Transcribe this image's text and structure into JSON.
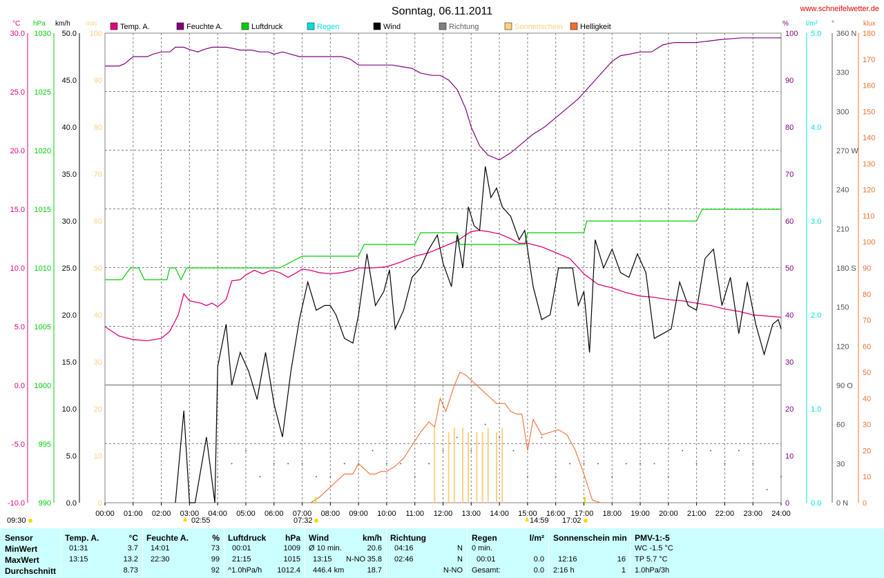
{
  "title": "Sonntag, 06.11.2011",
  "website": "www.schneifelwetter.de",
  "colors": {
    "temp": "#e0007a",
    "humidity": "#800080",
    "pressure": "#00d000",
    "rain": "#00e0e0",
    "wind": "#000000",
    "direction": "#606060",
    "sunshine": "#ffd080",
    "brightness": "#f07030",
    "grid": "#808080",
    "panel": "#ccffff"
  },
  "axis_units": {
    "temp": "°C",
    "pressure": "hPa",
    "wind": "km/h",
    "sunshine": "min",
    "humidity": "%",
    "rain": "l/m²",
    "direction": "°",
    "brightness": "klux"
  },
  "legend": [
    {
      "label": "Temp. A.",
      "color": "#e0007a"
    },
    {
      "label": "Feuchte A.",
      "color": "#800080"
    },
    {
      "label": "Luftdruck",
      "color": "#00d000"
    },
    {
      "label": "Regen",
      "color": "#00e0e0"
    },
    {
      "label": "Wind",
      "color": "#000000"
    },
    {
      "label": "Richtung",
      "color": "#808080"
    },
    {
      "label": "Sonnenschein",
      "color": "#ffd080"
    },
    {
      "label": "Helligkeit",
      "color": "#f07030"
    }
  ],
  "ticks": {
    "temp": [
      "30.0",
      "25.0",
      "20.0",
      "15.0",
      "10.0",
      "5.0",
      "0.0",
      "-5.0",
      "-10.0"
    ],
    "pressure": [
      "1030",
      "1025",
      "1020",
      "1015",
      "1010",
      "1005",
      "1000",
      "995",
      "990"
    ],
    "wind": [
      "50.0",
      "45.0",
      "40.0",
      "35.0",
      "30.0",
      "25.0",
      "20.0",
      "15.0",
      "10.0",
      "5.0",
      "0.0"
    ],
    "sunshine": [
      "100",
      "90",
      "80",
      "70",
      "60",
      "50",
      "40",
      "30",
      "20",
      "10",
      "0"
    ],
    "humidity": [
      "100",
      "90",
      "80",
      "70",
      "60",
      "50",
      "40",
      "30",
      "20",
      "10",
      "0"
    ],
    "rain": [
      "5.0",
      "4.0",
      "3.0",
      "2.0",
      "1.0",
      "0.0"
    ],
    "direction": [
      "360 N",
      "330",
      "300",
      "270 W",
      "240",
      "210",
      "180 S",
      "150",
      "120",
      "90 O",
      "60",
      "30",
      "0 N"
    ],
    "brightness": [
      "180",
      "170",
      "160",
      "150",
      "140",
      "130",
      "120",
      "110",
      "100",
      "90",
      "80",
      "70",
      "60",
      "50",
      "40",
      "30",
      "20",
      "10",
      "0"
    ],
    "time": [
      "00:00",
      "01:00",
      "02:00",
      "03:00",
      "04:00",
      "05:00",
      "06:00",
      "07:00",
      "08:00",
      "09:00",
      "10:00",
      "11:00",
      "12:00",
      "13:00",
      "14:00",
      "15:00",
      "16:00",
      "17:00",
      "18:00",
      "19:00",
      "20:00",
      "21:00",
      "22:00",
      "23:00",
      "24:00"
    ]
  },
  "sun_marks": {
    "moonrise": "09:30",
    "moonset": "02:55",
    "sunrise": "07:32",
    "moon2": "14:59",
    "sunset": "17:02"
  },
  "chart_data": {
    "type": "line",
    "title": "Sonntag, 06.11.2011",
    "x_unit": "hours",
    "series": [
      {
        "name": "Temp. A.",
        "unit": "°C",
        "x": [
          0,
          0.5,
          1,
          1.5,
          2,
          2.3,
          2.6,
          2.8,
          3,
          3.4,
          3.6,
          3.8,
          4,
          4.3,
          4.5,
          4.8,
          5,
          5.3,
          5.6,
          5.9,
          6.2,
          6.5,
          6.8,
          7,
          7.3,
          7.6,
          8,
          8.4,
          8.8,
          9,
          9.5,
          10,
          10.5,
          11,
          11.5,
          12,
          12.5,
          12.8,
          13,
          13.3,
          13.6,
          14,
          14.4,
          14.7,
          15,
          15.5,
          16,
          16.5,
          17,
          17.5,
          18,
          18.5,
          19,
          19.5,
          20,
          20.5,
          21,
          21.5,
          22,
          22.5,
          23,
          23.5,
          24
        ],
        "y": [
          5.0,
          4.2,
          3.9,
          3.8,
          4.0,
          4.6,
          6.0,
          7.8,
          7.2,
          7.0,
          6.8,
          7.0,
          6.7,
          7.3,
          8.9,
          9.0,
          9.4,
          9.8,
          9.5,
          9.8,
          9.6,
          9.2,
          9.6,
          9.9,
          9.8,
          9.6,
          9.5,
          9.6,
          9.8,
          10.0,
          10.0,
          10.1,
          10.5,
          11.0,
          11.3,
          11.8,
          12.3,
          12.8,
          13.1,
          13.2,
          13.1,
          12.9,
          12.5,
          12.1,
          12.1,
          11.8,
          11.3,
          10.8,
          9.5,
          8.6,
          8.3,
          7.9,
          7.6,
          7.5,
          7.3,
          7.2,
          7.0,
          6.8,
          6.5,
          6.3,
          6.0,
          5.9,
          5.8
        ]
      },
      {
        "name": "Feuchte A.",
        "unit": "%",
        "x": [
          0,
          0.5,
          0.7,
          1,
          1.5,
          1.7,
          2,
          2.3,
          2.5,
          2.8,
          3,
          3.3,
          3.5,
          3.8,
          4,
          4.3,
          4.5,
          4.8,
          5.2,
          5.5,
          5.8,
          6,
          6.3,
          6.6,
          6.9,
          7.2,
          7.6,
          8,
          8.4,
          8.7,
          9,
          9.4,
          9.8,
          10.2,
          10.6,
          10.9,
          11.2,
          11.6,
          11.9,
          12.2,
          12.5,
          12.8,
          13,
          13.3,
          13.6,
          14,
          14.4,
          14.8,
          15.2,
          15.6,
          16,
          16.4,
          16.8,
          17.1,
          17.4,
          17.7,
          18,
          18.3,
          18.6,
          19,
          19.4,
          19.8,
          20.2,
          20.6,
          21,
          21.4,
          21.8,
          22.2,
          22.6,
          23,
          23.4,
          23.8,
          24
        ],
        "y": [
          93,
          93,
          93.5,
          95,
          95,
          95.5,
          96,
          96,
          97,
          97,
          96.5,
          96,
          96.5,
          97,
          97,
          97,
          96.8,
          96.4,
          96.4,
          96,
          96,
          95.5,
          96,
          95.5,
          95,
          95,
          95,
          95,
          95,
          94.5,
          93.2,
          93.2,
          93.2,
          93.2,
          92.8,
          92.5,
          91.5,
          91,
          91,
          90,
          88,
          84,
          80,
          76,
          74,
          73,
          74.5,
          76.5,
          78.5,
          80,
          82,
          84,
          86,
          88,
          90,
          92,
          94,
          95.2,
          95.5,
          96,
          96,
          97.5,
          98,
          98,
          98,
          98.3,
          98.6,
          98.8,
          99,
          99,
          99,
          99,
          99
        ]
      },
      {
        "name": "Luftdruck",
        "unit": "hPa",
        "x": [
          0,
          0.5,
          0.6,
          0.9,
          1.2,
          1.4,
          1.7,
          2,
          2.2,
          2.3,
          2.5,
          2.7,
          2.9,
          3.2,
          5,
          6,
          6.2,
          7,
          8,
          8.5,
          9,
          9.2,
          10,
          11,
          11.2,
          12,
          12.5,
          12.6,
          14,
          14.9,
          15,
          17,
          17.1,
          18,
          19,
          20,
          21,
          21.2,
          22,
          23,
          24
        ],
        "y": [
          1009,
          1009,
          1009,
          1010,
          1010,
          1009,
          1009,
          1009,
          1009,
          1010,
          1010,
          1009,
          1010,
          1010,
          1010,
          1010,
          1010,
          1011,
          1011,
          1011,
          1011,
          1012,
          1012,
          1012,
          1013,
          1013,
          1013,
          1012,
          1012,
          1012,
          1013,
          1013,
          1014,
          1014,
          1014,
          1014,
          1014,
          1015,
          1015,
          1015,
          1015
        ]
      },
      {
        "name": "Wind",
        "unit": "km/h",
        "x": [
          2.5,
          2.8,
          3.0,
          3.2,
          3.6,
          3.9,
          4.0,
          4.3,
          4.5,
          4.8,
          5.1,
          5.4,
          5.7,
          6.0,
          6.3,
          6.6,
          6.9,
          7.2,
          7.5,
          7.8,
          8.0,
          8.2,
          8.5,
          8.8,
          9.0,
          9.3,
          9.6,
          9.9,
          10.1,
          10.3,
          10.6,
          10.9,
          11.2,
          11.5,
          11.8,
          12.0,
          12.3,
          12.5,
          12.7,
          12.9,
          13.1,
          13.3,
          13.5,
          13.7,
          13.9,
          14.1,
          14.4,
          14.7,
          14.9,
          15.2,
          15.5,
          15.8,
          16.1,
          16.4,
          16.6,
          16.8,
          17.0,
          17.2,
          17.4,
          17.7,
          18.0,
          18.3,
          18.6,
          18.9,
          19.2,
          19.5,
          19.8,
          20.1,
          20.4,
          20.7,
          21.0,
          21.3,
          21.6,
          21.9,
          22.2,
          22.5,
          22.8,
          23.1,
          23.4,
          23.7,
          23.9,
          24.0
        ],
        "y": [
          0.0,
          9.8,
          0.0,
          0.0,
          7.0,
          0.0,
          14.5,
          19.0,
          12.5,
          16.0,
          14.0,
          11.0,
          16.0,
          10.5,
          7.0,
          14.0,
          19.5,
          23.5,
          20.5,
          21.0,
          21.0,
          20.0,
          17.5,
          17.0,
          20.0,
          26.5,
          21.0,
          22.5,
          24.8,
          18.5,
          20.5,
          24.0,
          25.0,
          27.0,
          28.5,
          25.5,
          23.0,
          28.5,
          25.0,
          31.5,
          29.5,
          29.0,
          35.8,
          32.5,
          33.5,
          31.5,
          30.5,
          28.0,
          29.0,
          23.0,
          19.5,
          20.0,
          25.0,
          25.0,
          25.0,
          21.0,
          22.5,
          16.0,
          28.0,
          25.0,
          27.0,
          24.5,
          24.0,
          26.5,
          24.5,
          17.5,
          18.0,
          18.5,
          23.5,
          21.0,
          20.5,
          26.0,
          27.0,
          21.0,
          24.0,
          18.0,
          23.5,
          19.0,
          15.8,
          19.0,
          19.5,
          18.5
        ]
      },
      {
        "name": "Helligkeit",
        "unit": "klux",
        "x": [
          7.3,
          7.6,
          8,
          8.5,
          8.8,
          9,
          9.2,
          9.4,
          9.6,
          9.8,
          10,
          10.3,
          10.6,
          10.9,
          11.2,
          11.5,
          11.7,
          11.9,
          12.1,
          12.4,
          12.6,
          12.8,
          13,
          13.3,
          13.6,
          13.9,
          14.2,
          14.4,
          14.6,
          14.8,
          15,
          15.2,
          15.5,
          15.8,
          16.1,
          16.4,
          16.7,
          17,
          17.3,
          17.6
        ],
        "y": [
          0,
          2,
          6,
          11,
          11,
          15,
          13,
          11,
          11,
          12,
          12,
          14,
          17,
          22,
          27,
          31,
          29,
          40,
          35,
          45,
          50,
          49,
          47,
          44,
          41,
          38,
          38,
          35,
          34,
          34,
          20,
          32,
          26,
          27,
          28,
          26,
          20,
          11,
          1,
          0
        ]
      },
      {
        "name": "Sonnenschein",
        "unit": "min",
        "x": [
          11.7,
          12.2,
          12.4,
          12.7,
          12.9,
          13.2,
          13.4,
          13.6,
          13.9,
          14.1
        ],
        "y": [
          16,
          15,
          16,
          16,
          15,
          15,
          15,
          16,
          15,
          16
        ]
      },
      {
        "name": "Richtung",
        "unit": "°",
        "x": [
          4,
          4.5,
          5,
          5.5,
          6,
          6.5,
          7,
          7.5,
          8,
          8.5,
          9,
          9.5,
          10,
          10.5,
          11,
          11.5,
          12,
          12.5,
          13,
          13.5,
          14,
          14.5,
          15,
          15.5,
          16,
          16.5,
          17,
          17.5,
          18,
          18.5,
          19,
          19.5,
          20,
          20.5,
          21,
          21.5,
          22,
          22.5,
          23,
          23.5,
          24
        ],
        "y": [
          20,
          30,
          40,
          20,
          30,
          30,
          30,
          20,
          20,
          30,
          30,
          40,
          30,
          30,
          20,
          30,
          40,
          50,
          40,
          60,
          50,
          40,
          20,
          50,
          20,
          30,
          30,
          30,
          20,
          30,
          30,
          30,
          20,
          40,
          30,
          40,
          30,
          40,
          30,
          10,
          20
        ]
      }
    ]
  },
  "stats": {
    "headers": {
      "sensor": "Sensor",
      "temp": "Temp. A.",
      "temp_unit": "°C",
      "hum": "Feuchte A.",
      "hum_unit": "%",
      "press": "Luftdruck",
      "press_unit": "hPa",
      "wind": "Wind",
      "wind_unit": "km/h",
      "dir": "Richtung",
      "rain": "Regen",
      "rain_unit": "l/m²",
      "sun": "Sonnenschein min",
      "pmv": "PMV-1:-5"
    },
    "rows": [
      {
        "label": "MinWert",
        "temp_time": "01:31",
        "temp_val": "3.7",
        "hum_time": "14:01",
        "hum_val": "73",
        "press_time": "00:01",
        "press_val": "1009",
        "wind_label": "Ø 10 min.",
        "wind_dir": "",
        "wind_val": "20.6",
        "dir_time": "04:16",
        "dir_val": "N",
        "rain_time": "0 min.",
        "rain_val": "",
        "sun_time": "",
        "sun_val": "",
        "pmv": "WC -1.5 °C"
      },
      {
        "label": "MaxWert",
        "temp_time": "13:15",
        "temp_val": "13.2",
        "hum_time": "22:30",
        "hum_val": "99",
        "press_time": "21:15",
        "press_val": "1015",
        "wind_label": "13:15",
        "wind_dir": "N-NO",
        "wind_val": "35.8",
        "dir_time": "02:46",
        "dir_val": "N",
        "rain_time": "00:01",
        "rain_val": "0.0",
        "sun_time": "12:16",
        "sun_val": "16",
        "pmv": "TP 5.7 °C"
      },
      {
        "label": "Durchschnitt",
        "temp_time": "",
        "temp_val": "8.73",
        "hum_time": "",
        "hum_val": "92",
        "press_time": "^1.0hPa/h",
        "press_val": "1012.4",
        "wind_label": "446.4 km",
        "wind_dir": "",
        "wind_val": "18.7",
        "dir_time": "",
        "dir_val": "N-NO",
        "rain_time": "Gesamt:",
        "rain_val": "0.0",
        "sun_time": "2:16 h",
        "sun_val": "1",
        "pmv": "1.0hPa/3h"
      }
    ]
  }
}
